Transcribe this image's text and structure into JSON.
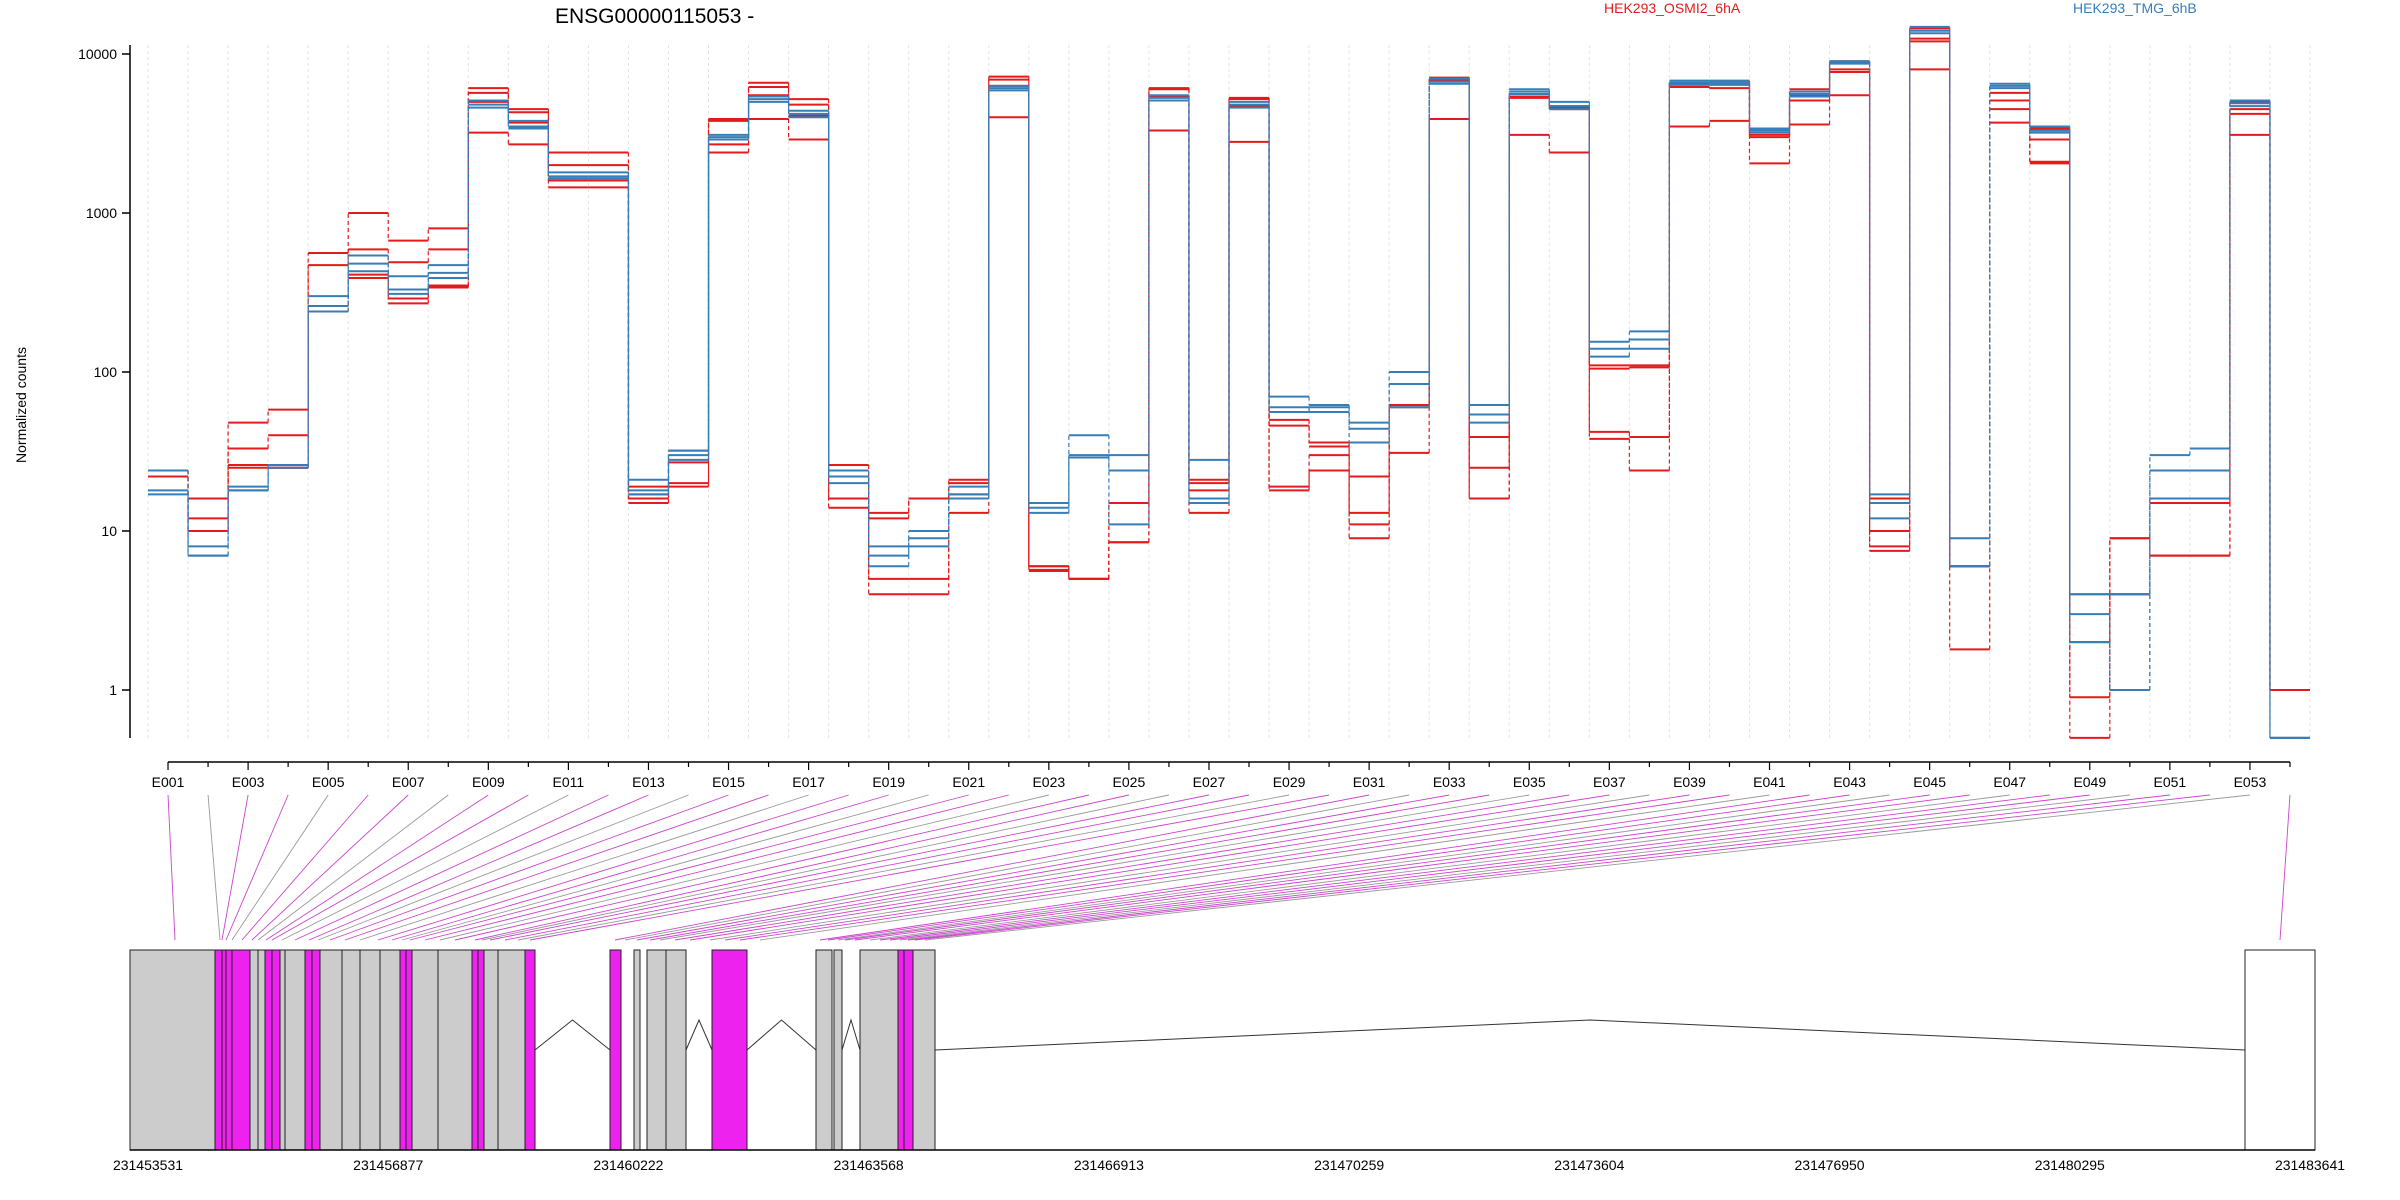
{
  "chart_data": {
    "type": "line",
    "title": "ENSG00000115053 -",
    "ylabel": "Normalized counts",
    "yscale": "log",
    "yticks": [
      "1",
      "10",
      "100",
      "1000",
      "10000"
    ],
    "categories": [
      "E001",
      "E002",
      "E003",
      "E004",
      "E005",
      "E006",
      "E007",
      "E008",
      "E009",
      "E010",
      "E011",
      "E012",
      "E013",
      "E014",
      "E015",
      "E016",
      "E017",
      "E018",
      "E019",
      "E020",
      "E021",
      "E022",
      "E023",
      "E024",
      "E025",
      "E026",
      "E027",
      "E028",
      "E029",
      "E030",
      "E031",
      "E032",
      "E033",
      "E034",
      "E035",
      "E036",
      "E037",
      "E038",
      "E039",
      "E040",
      "E041",
      "E042",
      "E043",
      "E044",
      "E045",
      "E046",
      "E047",
      "E048",
      "E049",
      "E050",
      "E051",
      "E052",
      "E053",
      "E054"
    ],
    "tick_labels": [
      "E001",
      "E003",
      "E005",
      "E007",
      "E009",
      "E011",
      "E013",
      "E015",
      "E017",
      "E019",
      "E021",
      "E023",
      "E025",
      "E027",
      "E029",
      "E031",
      "E033",
      "E035",
      "E037",
      "E039",
      "E041",
      "E043",
      "E045",
      "E047",
      "E049",
      "E051",
      "E053"
    ],
    "legend": [
      {
        "label": "HEK293_OSMI2_6hA",
        "color": "#e41a1c"
      },
      {
        "label": "HEK293_TMG_6hB",
        "color": "#377eb8"
      }
    ],
    "series": [
      {
        "group": 0,
        "values": [
          24,
          16,
          48,
          58,
          560,
          1000,
          670,
          800,
          6100,
          4500,
          2400,
          2400,
          19,
          32,
          3900,
          6600,
          5200,
          26,
          13,
          16,
          21,
          7200,
          6,
          5,
          15,
          6100,
          21,
          5300,
          50,
          36,
          22,
          62,
          7100,
          16,
          5400,
          4700,
          110,
          110,
          6500,
          6600,
          3300,
          6000,
          9000,
          16,
          14500,
          6,
          5700,
          3400,
          4,
          9,
          16,
          16,
          5000,
          1
        ]
      },
      {
        "group": 0,
        "values": [
          24,
          12,
          33,
          40,
          470,
          590,
          490,
          590,
          5700,
          4300,
          2000,
          2000,
          17,
          27,
          3800,
          6200,
          4800,
          22,
          12,
          16,
          20,
          6900,
          5.7,
          5,
          8.5,
          6000,
          18,
          5200,
          46,
          34,
          13,
          62,
          6900,
          39,
          5600,
          4600,
          42,
          39,
          6600,
          6600,
          3000,
          5500,
          7700,
          10,
          12000,
          6,
          5100,
          2900,
          2,
          9,
          7,
          7,
          4200,
          1
        ]
      },
      {
        "group": 0,
        "values": [
          22,
          10,
          26,
          25,
          240,
          410,
          270,
          340,
          3200,
          2700,
          1450,
          1450,
          16,
          20,
          2400,
          3900,
          2900,
          14,
          5,
          5,
          13,
          4000,
          5.6,
          5,
          8.5,
          3300,
          13,
          2800,
          18,
          24,
          9,
          31,
          3900,
          25,
          3100,
          2400,
          38,
          24,
          3500,
          3800,
          2050,
          3600,
          5500,
          7.5,
          8000,
          1.8,
          3700,
          2050,
          0.9,
          4,
          7,
          7,
          3100,
          1
        ]
      },
      {
        "group": 0,
        "values": [
          24,
          10,
          25,
          25,
          260,
          390,
          290,
          350,
          5000,
          3700,
          1600,
          1600,
          15,
          19,
          2700,
          5500,
          4100,
          16,
          4,
          4,
          17,
          6300,
          6,
          5,
          15,
          5400,
          20,
          4700,
          19,
          30,
          11,
          60,
          6800,
          16,
          5300,
          4500,
          105,
          107,
          6200,
          6100,
          3100,
          5100,
          8000,
          8,
          12500,
          6,
          4500,
          2100,
          0.5,
          4,
          15,
          15,
          4500,
          1
        ]
      },
      {
        "group": 1,
        "values": [
          24,
          7,
          18,
          26,
          300,
          540,
          400,
          470,
          5100,
          3800,
          1800,
          1800,
          21,
          32,
          3100,
          5400,
          4400,
          24,
          8,
          10,
          19,
          6300,
          15,
          40,
          30,
          5500,
          28,
          5000,
          70,
          62,
          48,
          100,
          7000,
          62,
          6000,
          5000,
          155,
          180,
          6800,
          6800,
          3400,
          5800,
          9000,
          17,
          14800,
          9,
          6500,
          3500,
          4,
          4,
          30,
          33,
          5100,
          0.5
        ]
      },
      {
        "group": 1,
        "values": [
          18,
          8,
          18,
          26,
          260,
          480,
          330,
          420,
          4800,
          3500,
          1700,
          1700,
          18,
          30,
          3000,
          5200,
          4200,
          22,
          7,
          9,
          17,
          6100,
          14,
          30,
          24,
          5300,
          16,
          4800,
          56,
          60,
          44,
          84,
          6700,
          54,
          5800,
          4700,
          140,
          160,
          6600,
          6600,
          3300,
          5600,
          8900,
          15,
          14000,
          6,
          6300,
          3300,
          3,
          1,
          24,
          24,
          4900,
          0.5
        ]
      },
      {
        "group": 1,
        "values": [
          17,
          7,
          19,
          25,
          240,
          430,
          310,
          390,
          4600,
          3400,
          1650,
          1650,
          17,
          28,
          2900,
          5000,
          4000,
          20,
          6,
          8,
          16,
          5900,
          13,
          29,
          11,
          5100,
          15,
          4600,
          60,
          56,
          36,
          60,
          6500,
          48,
          5600,
          4500,
          125,
          140,
          6400,
          6400,
          3200,
          5400,
          8700,
          12,
          13500,
          6,
          6100,
          3200,
          2,
          1,
          16,
          16,
          4700,
          0.5
        ]
      }
    ],
    "genomic_axis": [
      "231453531",
      "231456877",
      "231460222",
      "231463568",
      "231466913",
      "231470259",
      "231473604",
      "231476950",
      "231480295",
      "231483641"
    ]
  },
  "colors": {
    "groupA": "#e41a1c",
    "groupB": "#377eb8",
    "exon_gray": "#cccccc",
    "exon_magenta": "#ee22ee"
  }
}
